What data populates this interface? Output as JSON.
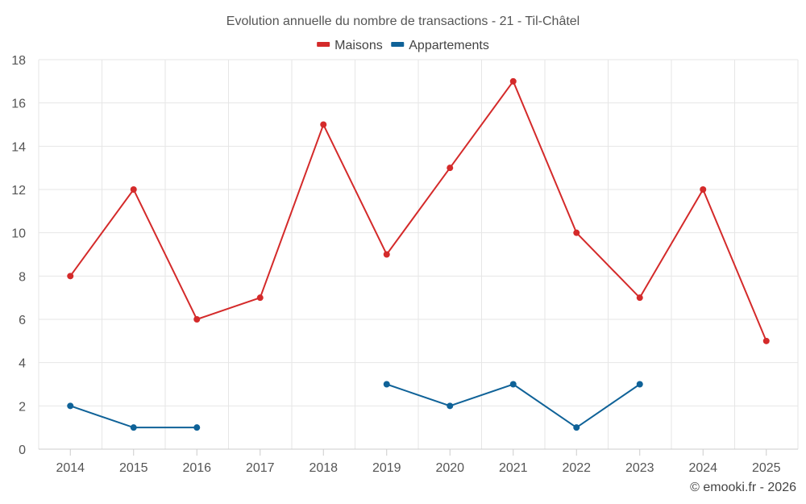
{
  "chart_data": {
    "type": "line",
    "title": "Evolution annuelle du nombre de transactions - 21 - Til-Châtel",
    "categories": [
      "2014",
      "2015",
      "2016",
      "2017",
      "2018",
      "2019",
      "2020",
      "2021",
      "2022",
      "2023",
      "2024",
      "2025"
    ],
    "series": [
      {
        "name": "Maisons",
        "color": "#d42a2a",
        "values": [
          8,
          12,
          6,
          7,
          15,
          9,
          13,
          17,
          10,
          7,
          12,
          5
        ]
      },
      {
        "name": "Appartements",
        "color": "#0f6298",
        "values": [
          2,
          1,
          1,
          null,
          null,
          3,
          2,
          3,
          1,
          3,
          null,
          null
        ]
      }
    ],
    "ylim": [
      0,
      18
    ],
    "yticks": [
      0,
      2,
      4,
      6,
      8,
      10,
      12,
      14,
      16,
      18
    ],
    "xlabel": "",
    "ylabel": "",
    "grid": true,
    "legend": "top-center"
  },
  "credit": "© emooki.fr - 2026"
}
